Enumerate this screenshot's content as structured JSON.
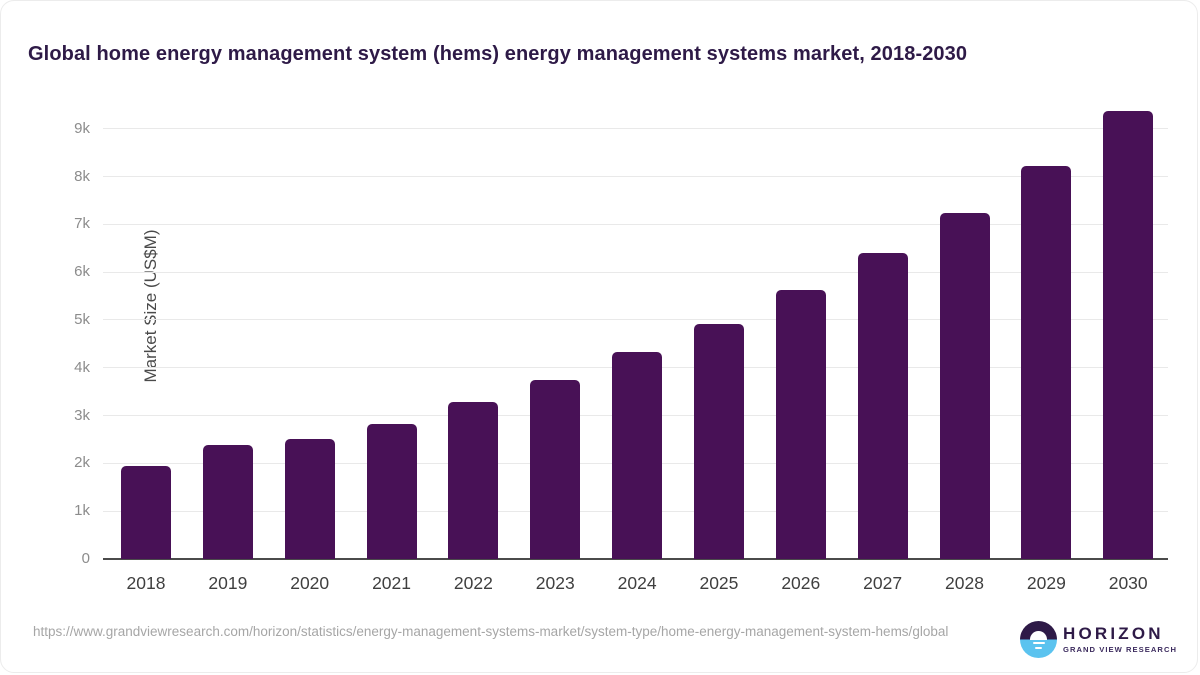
{
  "title": "Global home energy management system (hems) energy management systems market, 2018-2030",
  "chart_data": {
    "type": "bar",
    "categories": [
      "2018",
      "2019",
      "2020",
      "2021",
      "2022",
      "2023",
      "2024",
      "2025",
      "2026",
      "2027",
      "2028",
      "2029",
      "2030"
    ],
    "values": [
      1940,
      2380,
      2500,
      2830,
      3280,
      3750,
      4320,
      4920,
      5620,
      6400,
      7240,
      8210,
      9370
    ],
    "title": "Global home energy management system (hems) energy management systems market, 2018-2030",
    "xlabel": "",
    "ylabel": "Market Size (US$M)",
    "ylim": [
      0,
      9600
    ],
    "yticks": [
      0,
      1000,
      2000,
      3000,
      4000,
      5000,
      6000,
      7000,
      8000,
      9000
    ],
    "ytick_labels": [
      "0",
      "1k",
      "2k",
      "3k",
      "4k",
      "5k",
      "6k",
      "7k",
      "8k",
      "9k"
    ],
    "grid": "horizontal-only",
    "legend": "none",
    "bar_color": "#481156"
  },
  "colors": {
    "title_text": "#2e1a47",
    "bar": "#481156",
    "gridline": "#e9e9e9",
    "axis_line": "#4b4b4b",
    "ytick_text": "#8c8c8c",
    "xtick_text": "#3f3f3f",
    "url_text": "#a6a6a6",
    "logo_blue": "#5bc3ef",
    "logo_purple": "#2e1a47"
  },
  "footer": {
    "source_url": "https://www.grandviewresearch.com/horizon/statistics/energy-management-systems-market/system-type/home-energy-management-system-hems/global",
    "logo": {
      "brand": "HORIZON",
      "sub_brand": "GRAND VIEW RESEARCH"
    }
  }
}
